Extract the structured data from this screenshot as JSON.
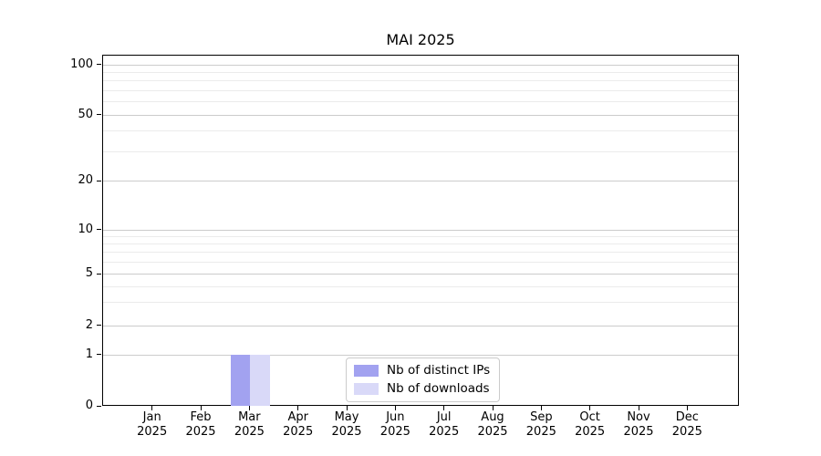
{
  "chart_data": {
    "type": "bar",
    "title": "MAI 2025",
    "categories": [
      "Jan",
      "Feb",
      "Mar",
      "Apr",
      "May",
      "Jun",
      "Jul",
      "Aug",
      "Sep",
      "Oct",
      "Nov",
      "Dec"
    ],
    "category_year": "2025",
    "series": [
      {
        "name": "Nb of distinct IPs",
        "color": "#a2a2f0",
        "values": [
          0,
          0,
          1,
          0,
          0,
          0,
          0,
          0,
          0,
          0,
          0,
          0
        ]
      },
      {
        "name": "Nb of downloads",
        "color": "#d9d9f8",
        "values": [
          0,
          0,
          1,
          0,
          0,
          0,
          0,
          0,
          0,
          0,
          0,
          0
        ]
      }
    ],
    "xlabel": "",
    "ylabel": "",
    "y_axis": {
      "scale": "log-like",
      "tick_labels_top_to_bottom": [
        "100",
        "50",
        "20",
        "10",
        "5",
        "2",
        "1",
        "0"
      ],
      "major_ticks": [
        100,
        50,
        20,
        10,
        5,
        2,
        1,
        0
      ],
      "minor_ticks": [
        90,
        80,
        70,
        60,
        40,
        30,
        9,
        8,
        7,
        6,
        4,
        3
      ],
      "range": [
        0,
        100
      ]
    },
    "grid": {
      "enabled": true,
      "major_color": "#cccccc",
      "minor_color": "#ebebeb"
    },
    "legend": {
      "position": "lower center inside plot",
      "entries": [
        "Nb of distinct IPs",
        "Nb of downloads"
      ]
    },
    "colors": {
      "spine": "#000000",
      "text": "#000000",
      "background": "#ffffff"
    }
  }
}
